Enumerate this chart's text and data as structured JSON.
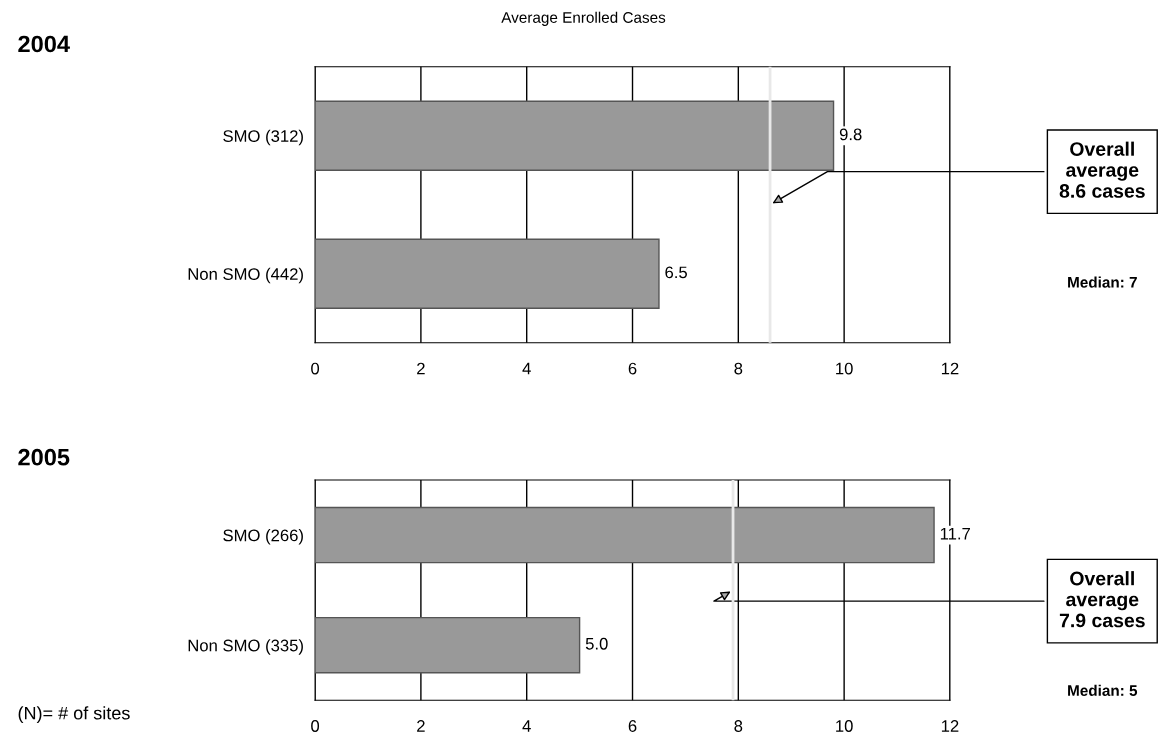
{
  "chart_data": [
    {
      "type": "bar",
      "orientation": "horizontal",
      "title": "Average Enrolled Cases",
      "subtitle": "2004",
      "categories": [
        "SMO (312)",
        "Non SMO (442)"
      ],
      "values": [
        9.8,
        6.5
      ],
      "value_labels": [
        "9.8",
        "6.5"
      ],
      "color": "#999999",
      "xlim": [
        0,
        12
      ],
      "xticks": [
        0,
        2,
        4,
        6,
        8,
        10,
        12
      ],
      "grid": "x",
      "ref_lines": [
        {
          "axis": "x",
          "value": 8.6,
          "color": "#e8e8e8"
        }
      ],
      "annotations": [
        "Overall\naverage\n8.6 cases",
        "Median: 7"
      ]
    },
    {
      "type": "bar",
      "orientation": "horizontal",
      "subtitle": "2005",
      "categories": [
        "SMO (266)",
        "Non SMO (335)"
      ],
      "values": [
        11.7,
        5.0
      ],
      "value_labels": [
        "11.7",
        "5.0"
      ],
      "color": "#999999",
      "xlim": [
        0,
        12
      ],
      "xticks": [
        0,
        2,
        4,
        6,
        8,
        10,
        12
      ],
      "grid": "x",
      "ref_lines": [
        {
          "axis": "x",
          "value": 7.9,
          "color": "#e8e8e8"
        }
      ],
      "annotations": [
        "Overall\naverage\n7.9 cases",
        "Median: 5",
        "(N)= # of sites"
      ]
    }
  ]
}
